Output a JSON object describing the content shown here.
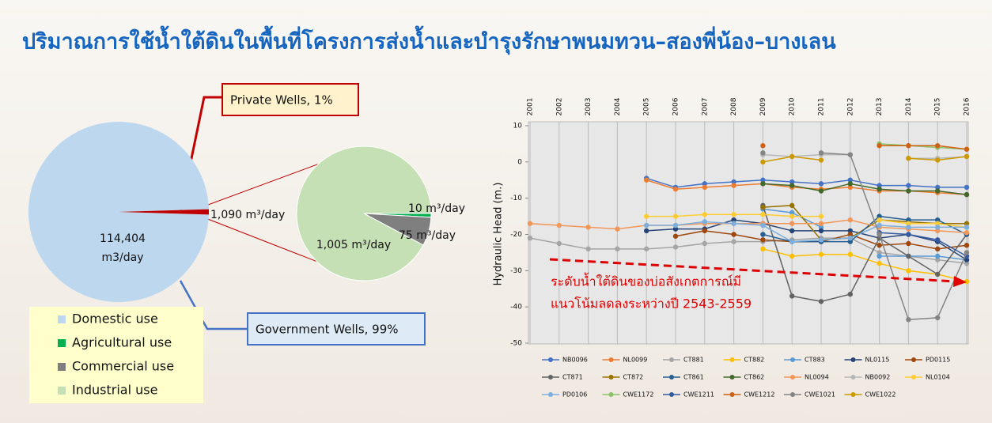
{
  "title": "ปริมาณการใช้น้ำใต้ดินในพื้นที่โครงการส่งน้ำและบำรุงรักษาพนมทวน–สองพี่น้อง–บางเลน",
  "legend": [
    {
      "name": "Domestic use",
      "color": "#bdd7ee"
    },
    {
      "name": "Agricultural use",
      "color": "#00b050"
    },
    {
      "name": "Commercial use",
      "color": "#7f7f7f"
    },
    {
      "name": "Industrial use",
      "color": "#c5e0b4"
    }
  ],
  "chart_data": [
    {
      "type": "pie",
      "values": [
        114404,
        1090
      ],
      "value_labels": [
        "114,404 m3/day",
        "1,090 m³/day"
      ],
      "colors": [
        "#bdd7ee",
        "#c00000"
      ],
      "annotations": [
        "Government Wells, 99%",
        "Private Wells, 1%"
      ]
    },
    {
      "type": "pie",
      "values": [
        10,
        75,
        1005
      ],
      "value_labels": [
        "10 m³/day",
        "75 m³/day",
        "1,005 m³/day"
      ],
      "colors": [
        "#00b050",
        "#7f7f7f",
        "#c5e0b4"
      ]
    },
    {
      "type": "line",
      "ylabel": "Hydraulic Head (m.)",
      "annotation": [
        "ระดับน้ำใต้ดินของบ่อสังเกตการณ์มี",
        "แนวโน้มลดลงระหว่างปี 2543-2559"
      ],
      "x": [
        2001,
        2002,
        2003,
        2004,
        2005,
        2006,
        2007,
        2008,
        2009,
        2010,
        2011,
        2012,
        2013,
        2014,
        2015,
        2016
      ],
      "ylim": [
        -50,
        10
      ],
      "yticks": [
        -50,
        -40,
        -30,
        -20,
        -10,
        0,
        10
      ],
      "grid": true,
      "series": [
        {
          "name": "NB0096",
          "color": "#4472c4",
          "values": [
            null,
            null,
            null,
            null,
            -4.5,
            -7,
            -6,
            -5.5,
            -5,
            -5.5,
            -6,
            -5,
            -6.5,
            -6.5,
            -7,
            -7
          ]
        },
        {
          "name": "NL0099",
          "color": "#ed7d31",
          "values": [
            null,
            null,
            null,
            null,
            -5,
            -7.5,
            -7,
            -6.5,
            -6,
            -7,
            -7.5,
            -7,
            -8,
            -8,
            -8.5,
            -9
          ]
        },
        {
          "name": "CT881",
          "color": "#a5a5a5",
          "values": [
            -21,
            -22.5,
            -24,
            -24,
            -24,
            -23.5,
            -22.5,
            -22,
            -22,
            -21.5,
            -21,
            -21,
            -25,
            -26,
            -27,
            -28
          ]
        },
        {
          "name": "CT882",
          "color": "#ffc000",
          "values": [
            null,
            null,
            null,
            null,
            null,
            null,
            null,
            null,
            -24,
            -26,
            -25.5,
            -25.5,
            -28,
            -30,
            -31,
            -33
          ]
        },
        {
          "name": "CT883",
          "color": "#5b9bd5",
          "values": [
            null,
            null,
            null,
            null,
            null,
            null,
            null,
            null,
            -13,
            -14,
            -18,
            null,
            -26,
            -26,
            -26,
            -27
          ]
        },
        {
          "name": "NL0115",
          "color": "#264478",
          "values": [
            null,
            null,
            null,
            null,
            -19,
            -18.5,
            -18.5,
            -16,
            -17,
            -19,
            -19,
            -19,
            -21,
            -20,
            -22,
            -27
          ]
        },
        {
          "name": "PD0115",
          "color": "#9e480e",
          "values": [
            null,
            null,
            null,
            null,
            null,
            -20.5,
            -19,
            -20,
            -21.5,
            -22,
            -22,
            -20,
            -23,
            -22.5,
            -24,
            -23
          ]
        },
        {
          "name": "CT871",
          "color": "#636363",
          "values": [
            null,
            null,
            null,
            null,
            null,
            null,
            null,
            null,
            -12,
            -37,
            -38.5,
            -36.5,
            -21,
            -26,
            -31,
            -20
          ]
        },
        {
          "name": "CT872",
          "color": "#997300",
          "values": [
            null,
            null,
            null,
            null,
            null,
            null,
            null,
            null,
            -12.5,
            -12,
            -21.5,
            -21,
            -16,
            -16.5,
            -17,
            -17
          ]
        },
        {
          "name": "CT861",
          "color": "#255e91",
          "values": [
            null,
            null,
            null,
            null,
            null,
            null,
            null,
            null,
            -20,
            -22,
            -22,
            -22,
            -15,
            -16,
            -16,
            -20
          ]
        },
        {
          "name": "CT862",
          "color": "#43682b",
          "values": [
            null,
            null,
            null,
            null,
            null,
            null,
            null,
            null,
            -6,
            -6.5,
            -8,
            -6,
            -7.5,
            -8,
            -8,
            -9
          ]
        },
        {
          "name": "NL0094",
          "color": "#f1975a",
          "values": [
            -17,
            -17.5,
            -18,
            -18.5,
            -17.5,
            -17.5,
            -17,
            -17,
            -17,
            -17,
            -17,
            -16,
            -18,
            -18.5,
            -19,
            -19.5
          ]
        },
        {
          "name": "NB0092",
          "color": "#b7b7b7",
          "values": [
            null,
            null,
            null,
            null,
            null,
            null,
            null,
            null,
            2,
            1.5,
            2,
            2,
            null,
            1,
            1,
            1.5
          ]
        },
        {
          "name": "NL0104",
          "color": "#ffcd33",
          "values": [
            null,
            null,
            null,
            null,
            -15,
            -15,
            -14.5,
            -14.5,
            -14.5,
            -15,
            -15,
            null,
            -16,
            -17,
            -17,
            -18
          ]
        },
        {
          "name": "PD0106",
          "color": "#7cafdd",
          "values": [
            null,
            null,
            null,
            null,
            -17.5,
            -17.5,
            -16.5,
            -17,
            -17.5,
            -22,
            -21.5,
            -21,
            -17.5,
            -18,
            -18,
            -18
          ]
        },
        {
          "name": "CWE1172",
          "color": "#8cc168",
          "values": [
            null,
            null,
            null,
            null,
            null,
            null,
            null,
            null,
            null,
            null,
            null,
            null,
            5,
            4.5,
            4,
            3.5
          ]
        },
        {
          "name": "CWE1211",
          "color": "#335aa1",
          "values": [
            null,
            null,
            null,
            null,
            null,
            null,
            null,
            null,
            null,
            null,
            null,
            null,
            -19.5,
            -20,
            -21.5,
            -26
          ]
        },
        {
          "name": "CWE1212",
          "color": "#d26012",
          "values": [
            null,
            null,
            null,
            null,
            null,
            null,
            null,
            null,
            4.5,
            null,
            null,
            null,
            4.5,
            4.5,
            4.5,
            3.5
          ]
        },
        {
          "name": "CWE1021",
          "color": "#848484",
          "values": [
            null,
            null,
            null,
            null,
            null,
            null,
            null,
            null,
            2.5,
            null,
            2.5,
            2,
            -20,
            -43.5,
            -43,
            -25
          ]
        },
        {
          "name": "CWE1022",
          "color": "#cc9a00",
          "values": [
            null,
            null,
            null,
            null,
            null,
            null,
            null,
            null,
            0,
            1.5,
            0.5,
            null,
            null,
            1,
            0.5,
            1.5
          ]
        }
      ]
    }
  ]
}
